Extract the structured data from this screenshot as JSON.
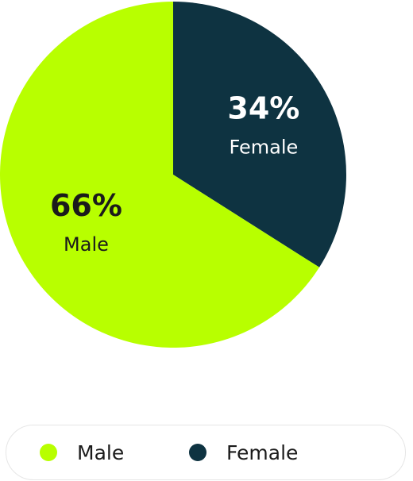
{
  "chart_data": {
    "type": "pie",
    "title": "",
    "categories": [
      "Male",
      "Female"
    ],
    "values": [
      66,
      34
    ],
    "value_labels": [
      "66%",
      "34%"
    ],
    "colors": [
      "#b8ff00",
      "#0e3341"
    ],
    "label_text_colors": [
      "#1b1b1b",
      "#ffffff"
    ],
    "legend": {
      "placement": "bottom",
      "entries": [
        "Male",
        "Female"
      ]
    }
  }
}
